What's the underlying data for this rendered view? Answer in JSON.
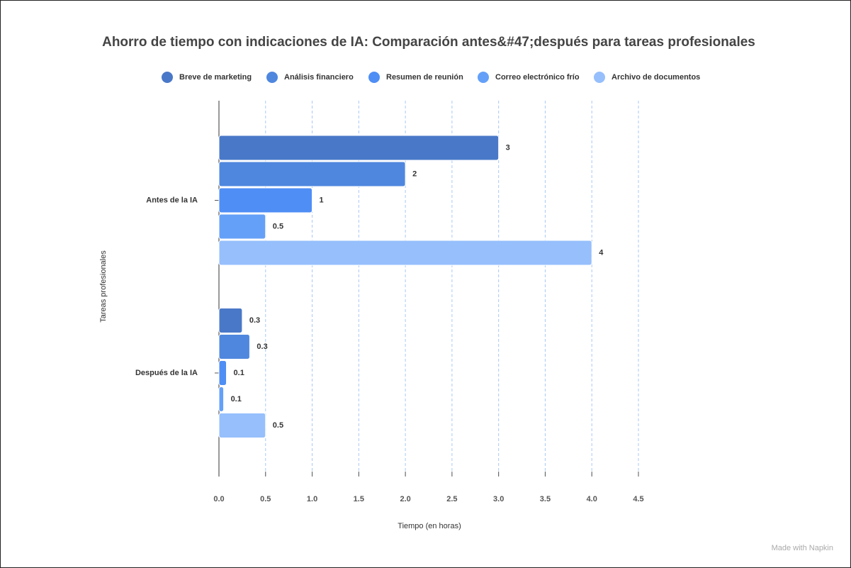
{
  "chart_data": {
    "type": "bar",
    "orientation": "horizontal",
    "title": "Ahorro de tiempo con indicaciones de IA: Comparación antes&#47;después para tareas profesionales",
    "x_label": "Tiempo (en horas)",
    "y_label": "Tareas profesionales",
    "categories": [
      "Antes de la IA",
      "Después de la IA"
    ],
    "series": [
      {
        "name": "Breve de marketing",
        "color": "#4a78c8",
        "values": [
          3,
          0.25
        ],
        "value_labels": [
          "3",
          "0.3"
        ]
      },
      {
        "name": "Análisis financiero",
        "color": "#4f87de",
        "values": [
          2,
          0.33
        ],
        "value_labels": [
          "2",
          "0.3"
        ]
      },
      {
        "name": "Resumen de reunión",
        "color": "#4f8ef5",
        "values": [
          1,
          0.08
        ],
        "value_labels": [
          "1",
          "0.1"
        ]
      },
      {
        "name": "Correo electrónico frío",
        "color": "#64a0f8",
        "values": [
          0.5,
          0.05
        ],
        "value_labels": [
          "0.5",
          "0.1"
        ]
      },
      {
        "name": "Archivo de documentos",
        "color": "#96bffc",
        "values": [
          4,
          0.5
        ],
        "value_labels": [
          "4",
          "0.5"
        ]
      }
    ],
    "xlim": [
      0,
      4.5
    ],
    "xticks": [
      {
        "value": 0,
        "label": "0.0"
      },
      0.5,
      {
        "value": 1,
        "label": "1.0"
      },
      1.5,
      {
        "value": 2,
        "label": "2.0"
      },
      2.5,
      {
        "value": 3,
        "label": "3.0"
      },
      3.5,
      {
        "value": 4,
        "label": "4.0"
      },
      4.5
    ],
    "grid": true,
    "legend": "top",
    "watermark": "Made with Napkin"
  }
}
